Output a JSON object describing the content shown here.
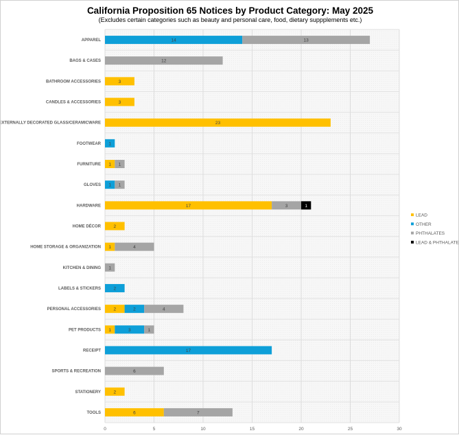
{
  "chart_data": {
    "type": "bar",
    "orientation": "horizontal",
    "stacked": true,
    "title": "California Proposition 65 Notices by Product Category: May 2025",
    "subtitle": "(Excludes certain categories such as beauty and personal care, food, dietary suppplements etc.)",
    "xlim": [
      0,
      30
    ],
    "xticks": [
      0,
      5,
      10,
      15,
      20,
      25,
      30
    ],
    "grid": true,
    "legend_position": "right",
    "categories": [
      "APPAREL",
      "BAGS & CASES",
      "BATHROOM ACCESSORIES",
      "CANDLES & ACCESSORIES",
      "EXTERNALLY DECORATED GLASS/CERAMICWARE",
      "FOOTWEAR",
      "FURNITURE",
      "GLOVES",
      "HARDWARE",
      "HOME DÉCOR",
      "HOME STORAGE & ORGANIZATION",
      "KITCHEN & DINING",
      "LABELS & STICKERS",
      "PERSONAL ACCESSORIES",
      "PET PRODUCTS",
      "RECEIPT",
      "SPORTS & RECREATION",
      "STATIONERY",
      "TOOLS"
    ],
    "series": [
      {
        "name": "LEAD",
        "color": "#FFC000",
        "values": [
          0,
          0,
          3,
          3,
          23,
          0,
          1,
          0,
          17,
          2,
          1,
          0,
          0,
          2,
          1,
          0,
          0,
          2,
          6
        ]
      },
      {
        "name": "OTHER",
        "color": "#0E9FD8",
        "values": [
          14,
          0,
          0,
          0,
          0,
          1,
          0,
          1,
          0,
          0,
          0,
          0,
          2,
          2,
          3,
          17,
          0,
          0,
          0
        ]
      },
      {
        "name": "PHTHALATES",
        "color": "#A5A5A5",
        "values": [
          13,
          12,
          0,
          0,
          0,
          0,
          1,
          1,
          3,
          0,
          4,
          1,
          0,
          4,
          1,
          0,
          6,
          0,
          7
        ]
      },
      {
        "name": "LEAD & PHTHALATES",
        "color": "#000000",
        "values": [
          0,
          0,
          0,
          0,
          0,
          0,
          0,
          0,
          1,
          0,
          0,
          0,
          0,
          0,
          0,
          0,
          0,
          0,
          0
        ]
      }
    ]
  }
}
